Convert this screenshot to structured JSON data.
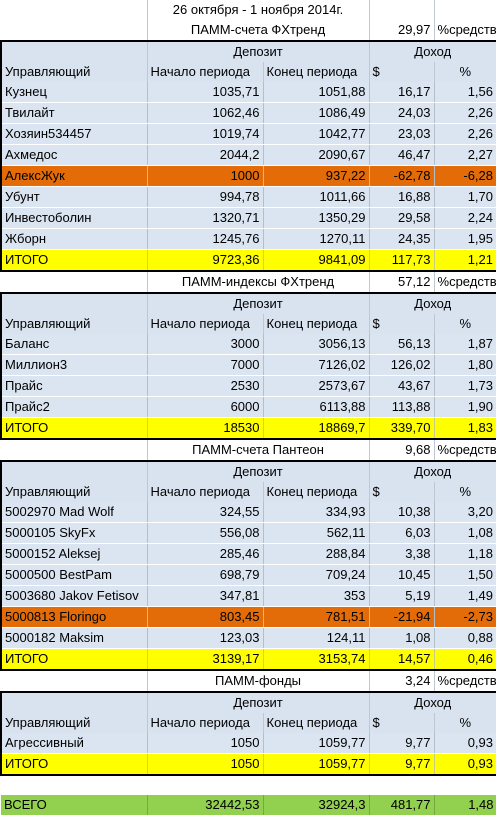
{
  "header": {
    "period": "26 октября - 1 ноября 2014г."
  },
  "columns": {
    "manager": "Управляющий",
    "deposit": "Депозит",
    "income": "Доход",
    "start": "Начало периода",
    "end": "Конец периода",
    "usd": "$",
    "pct": "%"
  },
  "sections": [
    {
      "title": "ПАММ-счета ФХтренд",
      "share": "29,97",
      "share_label": "%средств",
      "rows": [
        {
          "name": "Кузнец",
          "start": "1035,71",
          "end": "1051,88",
          "usd": "16,17",
          "pct": "1,56",
          "loss": false
        },
        {
          "name": "Твилайт",
          "start": "1062,46",
          "end": "1086,49",
          "usd": "24,03",
          "pct": "2,26",
          "loss": false
        },
        {
          "name": "Хозяин534457",
          "start": "1019,74",
          "end": "1042,77",
          "usd": "23,03",
          "pct": "2,26",
          "loss": false
        },
        {
          "name": "Ахмедос",
          "start": "2044,2",
          "end": "2090,67",
          "usd": "46,47",
          "pct": "2,27",
          "loss": false
        },
        {
          "name": "АлексЖук",
          "start": "1000",
          "end": "937,22",
          "usd": "-62,78",
          "pct": "-6,28",
          "loss": true
        },
        {
          "name": "Убунт",
          "start": "994,78",
          "end": "1011,66",
          "usd": "16,88",
          "pct": "1,70",
          "loss": false
        },
        {
          "name": "Инвестоболин",
          "start": "1320,71",
          "end": "1350,29",
          "usd": "29,58",
          "pct": "2,24",
          "loss": false
        },
        {
          "name": "Жборн",
          "start": "1245,76",
          "end": "1270,11",
          "usd": "24,35",
          "pct": "1,95",
          "loss": false
        }
      ],
      "total": {
        "name": "ИТОГО",
        "start": "9723,36",
        "end": "9841,09",
        "usd": "117,73",
        "pct": "1,21"
      }
    },
    {
      "title": "ПАММ-индексы ФХтренд",
      "share": "57,12",
      "share_label": "%средств",
      "rows": [
        {
          "name": "Баланс",
          "start": "3000",
          "end": "3056,13",
          "usd": "56,13",
          "pct": "1,87",
          "loss": false
        },
        {
          "name": "Миллион3",
          "start": "7000",
          "end": "7126,02",
          "usd": "126,02",
          "pct": "1,80",
          "loss": false
        },
        {
          "name": "Прайс",
          "start": "2530",
          "end": "2573,67",
          "usd": "43,67",
          "pct": "1,73",
          "loss": false
        },
        {
          "name": "Прайс2",
          "start": "6000",
          "end": "6113,88",
          "usd": "113,88",
          "pct": "1,90",
          "loss": false
        }
      ],
      "total": {
        "name": "ИТОГО",
        "start": "18530",
        "end": "18869,7",
        "usd": "339,70",
        "pct": "1,83"
      }
    },
    {
      "title": "ПАММ-счета Пантеон",
      "share": "9,68",
      "share_label": "%средств",
      "rows": [
        {
          "name": "5002970 Mad Wolf",
          "start": "324,55",
          "end": "334,93",
          "usd": "10,38",
          "pct": "3,20",
          "loss": false
        },
        {
          "name": "5000105 SkyFx",
          "start": "556,08",
          "end": "562,11",
          "usd": "6,03",
          "pct": "1,08",
          "loss": false
        },
        {
          "name": "5000152 Aleksej",
          "start": "285,46",
          "end": "288,84",
          "usd": "3,38",
          "pct": "1,18",
          "loss": false
        },
        {
          "name": "5000500 BestPam",
          "start": "698,79",
          "end": "709,24",
          "usd": "10,45",
          "pct": "1,50",
          "loss": false
        },
        {
          "name": "5003680 Jakov Fetisov",
          "start": "347,81",
          "end": "353",
          "usd": "5,19",
          "pct": "1,49",
          "loss": false
        },
        {
          "name": "5000813 Floringo",
          "start": "803,45",
          "end": "781,51",
          "usd": "-21,94",
          "pct": "-2,73",
          "loss": true
        },
        {
          "name": "5000182 Maksim",
          "start": "123,03",
          "end": "124,11",
          "usd": "1,08",
          "pct": "0,88",
          "loss": false
        }
      ],
      "total": {
        "name": "ИТОГО",
        "start": "3139,17",
        "end": "3153,74",
        "usd": "14,57",
        "pct": "0,46"
      }
    },
    {
      "title": "ПАММ-фонды",
      "share": "3,24",
      "share_label": "%средств",
      "rows": [
        {
          "name": "Агрессивный",
          "start": "1050",
          "end": "1059,77",
          "usd": "9,77",
          "pct": "0,93",
          "loss": false
        }
      ],
      "total": {
        "name": "ИТОГО",
        "start": "1050",
        "end": "1059,77",
        "usd": "9,77",
        "pct": "0,93"
      }
    }
  ],
  "grand_total": {
    "name": "ВСЕГО",
    "start": "32442,53",
    "end": "32924,3",
    "usd": "481,77",
    "pct": "1,48"
  }
}
